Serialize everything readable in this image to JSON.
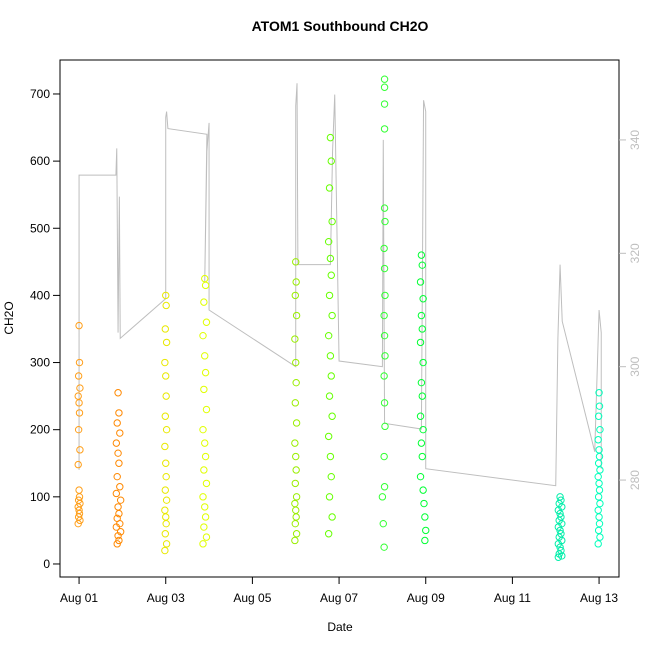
{
  "chart_data": {
    "type": "scatter",
    "title": "ATOM1 Southbound CH2O",
    "x_label": "Date",
    "y_label": "CH2O",
    "xlim": [
      0.56,
      13.46
    ],
    "ylim": [
      -19.4,
      750.6
    ],
    "y2lim": [
      262.9,
      354.1
    ],
    "xticks": [
      {
        "value": 1,
        "label": "Aug 01"
      },
      {
        "value": 3,
        "label": "Aug 03"
      },
      {
        "value": 5,
        "label": "Aug 05"
      },
      {
        "value": 7,
        "label": "Aug 07"
      },
      {
        "value": 9,
        "label": "Aug 09"
      },
      {
        "value": 11,
        "label": "Aug 11"
      },
      {
        "value": 13,
        "label": "Aug 13"
      }
    ],
    "yticks": [
      0,
      100,
      200,
      300,
      400,
      500,
      600,
      700
    ],
    "y2ticks": [
      280,
      300,
      320,
      340
    ],
    "series": [
      {
        "color": "#BEBEBE",
        "axis": "y2",
        "style": "line",
        "x": [
          1.0,
          1.0,
          1.85,
          1.87,
          1.9,
          1.93,
          1.95,
          3.0,
          3.0,
          3.02,
          3.05,
          3.95,
          3.9,
          3.95,
          4.0,
          4.0,
          6.0,
          6.0,
          6.03,
          6.05,
          6.8,
          6.85,
          6.9,
          7.0,
          8.0,
          8.02,
          8.05,
          8.9,
          8.95,
          9.0,
          9.0,
          12.0,
          12.05,
          12.1,
          12.15,
          12.9,
          13.0,
          13.05,
          13.05
        ],
        "values": [
          281.8,
          333.8,
          333.8,
          338.5,
          306,
          330,
          305,
          312,
          344,
          345,
          342,
          341,
          315,
          338,
          343,
          310,
          300,
          346,
          350,
          318,
          318,
          338,
          348,
          301,
          300,
          340,
          290,
          289,
          347,
          345,
          282,
          279,
          305,
          318,
          308,
          285,
          310,
          306,
          282
        ]
      },
      {
        "color": "#FF9F1A",
        "x": [
          1.0,
          1.01,
          0.99,
          1.02,
          0.98,
          1.0,
          1.01,
          0.99,
          1.02,
          0.98,
          1.0,
          1.01,
          0.99,
          1.02,
          0.98,
          1.0,
          1.01,
          0.99,
          1.02,
          0.98
        ],
        "values": [
          355,
          300,
          280,
          262,
          250,
          240,
          225,
          200,
          170,
          148,
          110,
          100,
          95,
          90,
          85,
          80,
          75,
          70,
          65,
          60
        ]
      },
      {
        "color": "#FF8800",
        "x": [
          1.9,
          1.92,
          1.88,
          1.94,
          1.86,
          1.9,
          1.92,
          1.88,
          1.94,
          1.86,
          1.96,
          1.9,
          1.92,
          1.88,
          1.94,
          1.86,
          1.96,
          1.9,
          1.92,
          1.88
        ],
        "values": [
          255,
          225,
          210,
          195,
          180,
          165,
          150,
          130,
          115,
          105,
          95,
          85,
          75,
          68,
          60,
          55,
          48,
          42,
          35,
          30
        ]
      },
      {
        "color": "#E8E800",
        "x": [
          3.0,
          3.01,
          2.99,
          3.02,
          2.98,
          3.0,
          3.01,
          2.99,
          3.02,
          2.98,
          3.0,
          3.01,
          2.99,
          3.02,
          2.98,
          3.0,
          3.01,
          2.99,
          3.02,
          2.98
        ],
        "values": [
          400,
          385,
          350,
          330,
          300,
          280,
          250,
          220,
          200,
          175,
          150,
          130,
          110,
          95,
          80,
          70,
          60,
          45,
          30,
          20
        ]
      },
      {
        "color": "#E0FF00",
        "x": [
          3.9,
          3.92,
          3.88,
          3.94,
          3.86,
          3.9,
          3.92,
          3.88,
          3.94,
          3.86,
          3.9,
          3.92,
          3.88,
          3.94,
          3.86,
          3.9,
          3.92,
          3.88,
          3.94,
          3.86
        ],
        "values": [
          425,
          415,
          390,
          360,
          340,
          310,
          285,
          260,
          230,
          200,
          180,
          160,
          140,
          120,
          100,
          85,
          70,
          55,
          40,
          30
        ]
      },
      {
        "color": "#99EE00",
        "x": [
          6.0,
          6.01,
          5.99,
          6.02,
          5.98,
          6.0,
          6.01,
          5.99,
          6.02,
          5.98,
          6.0,
          6.01,
          5.99,
          6.02,
          5.98,
          6.0,
          6.01,
          5.99,
          6.02,
          5.98
        ],
        "values": [
          450,
          420,
          400,
          370,
          335,
          300,
          270,
          240,
          210,
          180,
          160,
          140,
          120,
          100,
          90,
          80,
          70,
          60,
          45,
          35
        ]
      },
      {
        "color": "#66FF00",
        "x": [
          6.8,
          6.82,
          6.78,
          6.84,
          6.76,
          6.8,
          6.82,
          6.78,
          6.84,
          6.76,
          6.8,
          6.82,
          6.78,
          6.84,
          6.76,
          6.8,
          6.82,
          6.78,
          6.84,
          6.76
        ],
        "values": [
          635,
          600,
          560,
          510,
          480,
          455,
          430,
          400,
          370,
          340,
          310,
          280,
          250,
          220,
          190,
          160,
          130,
          100,
          70,
          45
        ]
      },
      {
        "color": "#33FF33",
        "x": [
          8.05,
          8.05,
          8.05,
          8.05,
          8.05,
          8.06,
          8.04,
          8.05,
          8.06,
          8.04,
          8.05,
          8.06,
          8.04,
          8.05,
          8.06,
          8.04,
          8.05,
          8.0,
          8.02,
          8.04
        ],
        "values": [
          722,
          710,
          685,
          648,
          530,
          510,
          470,
          440,
          400,
          370,
          340,
          310,
          280,
          240,
          205,
          160,
          115,
          100,
          60,
          25
        ]
      },
      {
        "color": "#00FF33",
        "x": [
          8.9,
          8.92,
          8.88,
          8.94,
          8.9,
          8.92,
          8.88,
          8.94,
          8.9,
          8.92,
          8.88,
          8.94,
          8.9,
          8.92,
          8.88,
          8.94,
          8.96,
          8.98,
          9.0,
          8.98
        ],
        "values": [
          460,
          445,
          420,
          395,
          370,
          350,
          330,
          300,
          270,
          250,
          220,
          200,
          180,
          160,
          130,
          110,
          90,
          70,
          50,
          35
        ]
      },
      {
        "color": "#00EEAA",
        "x": [
          12.1,
          12.12,
          12.08,
          12.14,
          12.06,
          12.1,
          12.12,
          12.08,
          12.14,
          12.06,
          12.1,
          12.12,
          12.08,
          12.14,
          12.06,
          12.1,
          12.12,
          12.08,
          12.14,
          12.06
        ],
        "values": [
          100,
          95,
          90,
          85,
          80,
          75,
          70,
          65,
          60,
          55,
          50,
          45,
          40,
          35,
          30,
          25,
          20,
          15,
          12,
          10
        ]
      },
      {
        "color": "#00FFBB",
        "x": [
          13.0,
          13.01,
          12.99,
          13.02,
          12.98,
          13.0,
          13.01,
          12.99,
          13.02,
          12.98,
          13.0,
          13.01,
          12.99,
          13.02,
          12.98,
          13.0,
          13.01,
          12.99,
          13.02,
          12.98
        ],
        "values": [
          255,
          235,
          220,
          200,
          185,
          170,
          160,
          150,
          140,
          130,
          120,
          110,
          100,
          90,
          80,
          70,
          60,
          50,
          40,
          30
        ]
      }
    ]
  }
}
